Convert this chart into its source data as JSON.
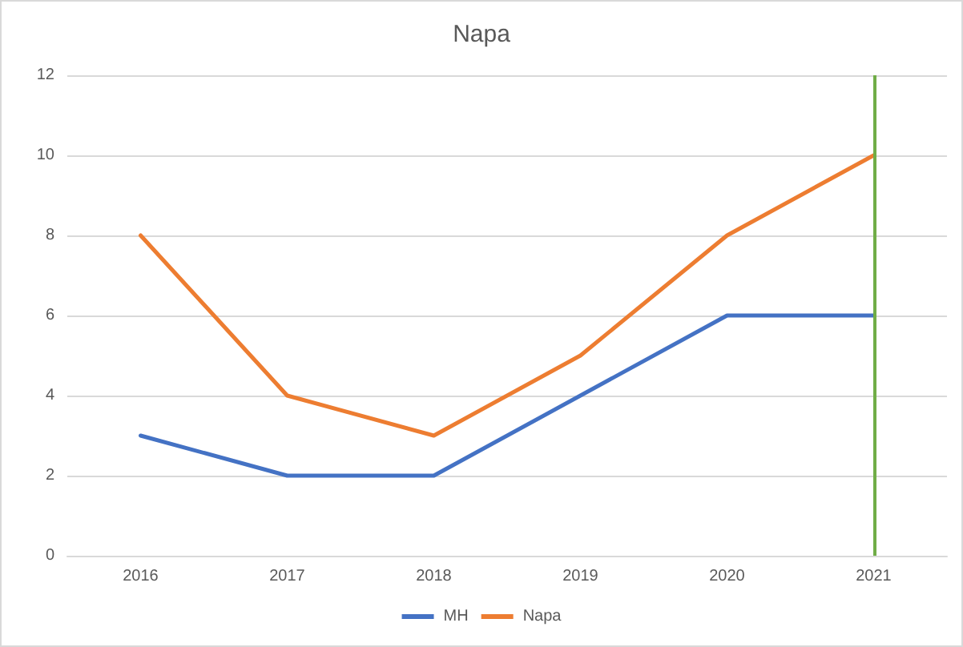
{
  "chart_data": {
    "type": "line",
    "title": "Napa",
    "categories": [
      "2016",
      "2017",
      "2018",
      "2019",
      "2020",
      "2021"
    ],
    "series": [
      {
        "name": "MH",
        "color": "#4472c4",
        "values": [
          3,
          2,
          2,
          4,
          6,
          6
        ]
      },
      {
        "name": "Napa",
        "color": "#ed7d31",
        "values": [
          8,
          4,
          3,
          5,
          8,
          10
        ]
      }
    ],
    "ylim": [
      0,
      12
    ],
    "yticks": [
      0,
      2,
      4,
      6,
      8,
      10,
      12
    ],
    "grid": "y",
    "legend": "bottom",
    "marker": "none",
    "line_style": "solid",
    "ref_lines": [
      {
        "axis": "x",
        "value": "2021",
        "color": "#70ad47"
      }
    ]
  }
}
